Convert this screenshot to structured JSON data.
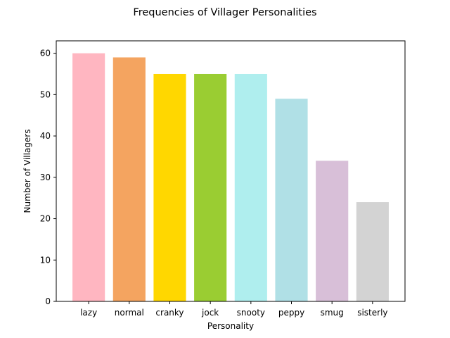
{
  "chart_data": {
    "type": "bar",
    "title": "Frequencies of Villager Personalities",
    "xlabel": "Personality",
    "ylabel": "Number of Villagers",
    "categories": [
      "lazy",
      "normal",
      "cranky",
      "jock",
      "snooty",
      "peppy",
      "smug",
      "sisterly"
    ],
    "values": [
      60,
      59,
      55,
      55,
      55,
      49,
      34,
      24
    ],
    "colors": [
      "#ffb6c1",
      "#f4a460",
      "#ffd700",
      "#9acd32",
      "#afeeee",
      "#b0e0e6",
      "#d8bfd8",
      "#d3d3d3"
    ],
    "ylim": [
      0,
      63
    ],
    "yticks": [
      0,
      10,
      20,
      30,
      40,
      50,
      60
    ],
    "grid": false,
    "legend": "none"
  }
}
